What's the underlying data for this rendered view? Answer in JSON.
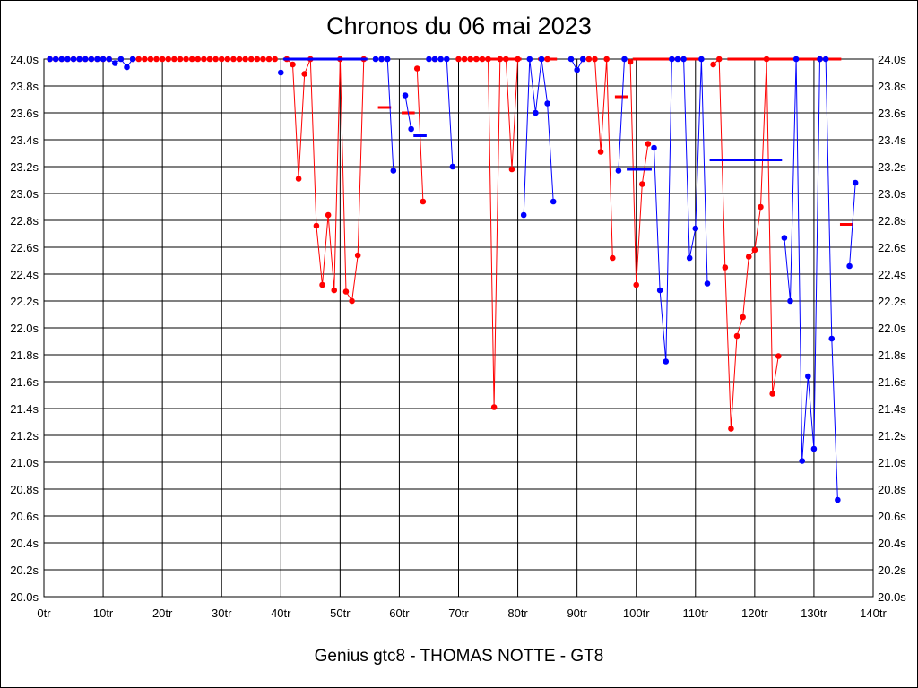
{
  "chart_data": {
    "type": "line",
    "title": "Chronos du 06 mai 2023",
    "subtitle": "Genius gtc8 - THOMAS NOTTE - GT8",
    "xlim": [
      0,
      140
    ],
    "ylim": [
      20.0,
      24.0
    ],
    "x_ticks": [
      0,
      10,
      20,
      30,
      40,
      50,
      60,
      70,
      80,
      90,
      100,
      110,
      120,
      130,
      140
    ],
    "x_tick_labels": [
      "0tr",
      "10tr",
      "20tr",
      "30tr",
      "40tr",
      "50tr",
      "60tr",
      "70tr",
      "80tr",
      "90tr",
      "100tr",
      "110tr",
      "120tr",
      "130tr",
      "140tr"
    ],
    "y_ticks": [
      20.0,
      20.2,
      20.4,
      20.6,
      20.8,
      21.0,
      21.2,
      21.4,
      21.6,
      21.8,
      22.0,
      22.2,
      22.4,
      22.6,
      22.8,
      23.0,
      23.2,
      23.4,
      23.6,
      23.8,
      24.0
    ],
    "y_tick_labels": [
      "20.0s",
      "20.2s",
      "20.4s",
      "20.6s",
      "20.8s",
      "21.0s",
      "21.2s",
      "21.4s",
      "21.6s",
      "21.8s",
      "22.0s",
      "22.2s",
      "22.4s",
      "22.6s",
      "22.8s",
      "23.0s",
      "23.2s",
      "23.4s",
      "23.6s",
      "23.8s",
      "24.0s"
    ],
    "grid": true,
    "series": [
      {
        "color": "#ff0000",
        "segments": [
          [
            [
              1,
              24.0
            ],
            [
              2,
              24.0
            ],
            [
              3,
              24.0
            ],
            [
              4,
              24.0
            ],
            [
              5,
              24.0
            ],
            [
              6,
              24.0
            ],
            [
              7,
              24.0
            ],
            [
              8,
              24.0
            ],
            [
              9,
              24.0
            ],
            [
              10,
              24.0
            ],
            [
              11,
              24.0
            ]
          ],
          [
            [
              15,
              24.0
            ],
            [
              16,
              24.0
            ],
            [
              17,
              24.0
            ],
            [
              18,
              24.0
            ],
            [
              19,
              24.0
            ],
            [
              20,
              24.0
            ],
            [
              21,
              24.0
            ],
            [
              22,
              24.0
            ],
            [
              23,
              24.0
            ],
            [
              24,
              24.0
            ],
            [
              25,
              24.0
            ],
            [
              26,
              24.0
            ],
            [
              27,
              24.0
            ],
            [
              28,
              24.0
            ],
            [
              29,
              24.0
            ],
            [
              30,
              24.0
            ],
            [
              31,
              24.0
            ],
            [
              32,
              24.0
            ],
            [
              33,
              24.0
            ],
            [
              34,
              24.0
            ],
            [
              35,
              24.0
            ],
            [
              36,
              24.0
            ],
            [
              37,
              24.0
            ],
            [
              38,
              24.0
            ],
            [
              39,
              24.0
            ]
          ],
          [
            [
              41,
              24.0
            ],
            [
              42,
              23.96
            ],
            [
              43,
              23.11
            ],
            [
              44,
              23.89
            ],
            [
              45,
              24.0
            ],
            [
              46,
              22.76
            ],
            [
              47,
              22.32
            ],
            [
              48,
              22.84
            ],
            [
              49,
              22.28
            ],
            [
              50,
              24.0
            ],
            [
              51,
              22.27
            ],
            [
              52,
              22.2
            ],
            [
              53,
              22.54
            ],
            [
              54,
              24.0
            ]
          ],
          [
            [
              57,
              24.0
            ]
          ],
          [
            [
              63,
              23.93
            ],
            [
              64,
              22.94
            ]
          ],
          [
            [
              66,
              24.0
            ]
          ],
          [
            [
              70,
              24.0
            ],
            [
              71,
              24.0
            ],
            [
              72,
              24.0
            ],
            [
              73,
              24.0
            ],
            [
              74,
              24.0
            ],
            [
              75,
              24.0
            ],
            [
              76,
              21.41
            ],
            [
              77,
              24.0
            ],
            [
              78,
              24.0
            ],
            [
              79,
              23.18
            ],
            [
              80,
              24.0
            ]
          ],
          [
            [
              85,
              24.0
            ]
          ],
          [
            [
              91,
              24.0
            ],
            [
              92,
              24.0
            ],
            [
              93,
              24.0
            ],
            [
              94,
              23.31
            ],
            [
              95,
              24.0
            ],
            [
              96,
              22.52
            ]
          ],
          [
            [
              99,
              23.98
            ],
            [
              100,
              22.32
            ],
            [
              101,
              23.07
            ],
            [
              102,
              23.37
            ]
          ],
          [
            [
              113,
              23.96
            ],
            [
              114,
              24.0
            ],
            [
              115,
              22.45
            ],
            [
              116,
              21.25
            ],
            [
              117,
              21.94
            ],
            [
              118,
              22.08
            ],
            [
              119,
              22.53
            ],
            [
              120,
              22.58
            ],
            [
              121,
              22.9
            ],
            [
              122,
              24.0
            ],
            [
              123,
              21.51
            ],
            [
              124,
              21.79
            ]
          ],
          [
            [
              131,
              24.0
            ]
          ]
        ],
        "averages": [
          [
            [
              100,
              24.0
            ],
            [
              110,
              24.0
            ]
          ],
          [
            [
              116,
              24.0
            ],
            [
              124,
              24.0
            ]
          ],
          [
            [
              125,
              24.0
            ],
            [
              134,
              24.0
            ]
          ],
          [
            [
              57,
              23.64
            ],
            [
              58,
              23.64
            ]
          ],
          [
            [
              61,
              23.6
            ],
            [
              62,
              23.6
            ]
          ],
          [
            [
              97,
              23.72
            ],
            [
              98,
              23.72
            ]
          ],
          [
            [
              135,
              22.77
            ],
            [
              136,
              22.77
            ]
          ],
          [
            [
              84,
              24.0
            ],
            [
              86,
              24.0
            ]
          ],
          [
            [
              73,
              24.0
            ],
            [
              80,
              24.0
            ]
          ]
        ]
      },
      {
        "color": "#0000ff",
        "segments": [
          [
            [
              1,
              24.0
            ],
            [
              2,
              24.0
            ],
            [
              3,
              24.0
            ],
            [
              4,
              24.0
            ],
            [
              5,
              24.0
            ],
            [
              6,
              24.0
            ],
            [
              7,
              24.0
            ],
            [
              8,
              24.0
            ],
            [
              9,
              24.0
            ],
            [
              10,
              24.0
            ],
            [
              11,
              24.0
            ],
            [
              12,
              23.97
            ],
            [
              13,
              24.0
            ],
            [
              14,
              23.94
            ],
            [
              15,
              24.0
            ]
          ],
          [
            [
              40,
              23.9
            ]
          ],
          [
            [
              56,
              24.0
            ],
            [
              57,
              24.0
            ],
            [
              58,
              24.0
            ],
            [
              59,
              23.17
            ]
          ],
          [
            [
              61,
              23.73
            ],
            [
              62,
              23.48
            ]
          ],
          [
            [
              65,
              24.0
            ],
            [
              66,
              24.0
            ],
            [
              67,
              24.0
            ],
            [
              68,
              24.0
            ],
            [
              69,
              23.2
            ]
          ],
          [
            [
              81,
              22.84
            ],
            [
              82,
              24.0
            ],
            [
              83,
              23.6
            ],
            [
              84,
              24.0
            ],
            [
              85,
              23.67
            ],
            [
              86,
              22.94
            ]
          ],
          [
            [
              89,
              24.0
            ],
            [
              90,
              23.92
            ],
            [
              91,
              24.0
            ]
          ],
          [
            [
              97,
              23.17
            ],
            [
              98,
              24.0
            ]
          ],
          [
            [
              103,
              23.34
            ],
            [
              104,
              22.28
            ],
            [
              105,
              21.75
            ],
            [
              106,
              24.0
            ],
            [
              107,
              24.0
            ],
            [
              108,
              24.0
            ],
            [
              109,
              22.52
            ],
            [
              110,
              22.74
            ],
            [
              111,
              24.0
            ],
            [
              112,
              22.33
            ]
          ],
          [
            [
              125,
              22.67
            ],
            [
              126,
              22.2
            ],
            [
              127,
              24.0
            ],
            [
              128,
              21.01
            ],
            [
              129,
              21.64
            ],
            [
              130,
              21.1
            ],
            [
              131,
              24.0
            ],
            [
              132,
              24.0
            ],
            [
              133,
              21.92
            ],
            [
              134,
              20.72
            ]
          ],
          [
            [
              136,
              22.46
            ],
            [
              137,
              23.08
            ]
          ]
        ],
        "averages": [
          [
            [
              41,
              24.0
            ],
            [
              54,
              24.0
            ]
          ],
          [
            [
              63,
              23.43
            ],
            [
              64,
              23.43
            ]
          ],
          [
            [
              99,
              23.18
            ],
            [
              102,
              23.18
            ]
          ],
          [
            [
              113,
              23.25
            ],
            [
              124,
              23.25
            ]
          ]
        ]
      }
    ]
  }
}
